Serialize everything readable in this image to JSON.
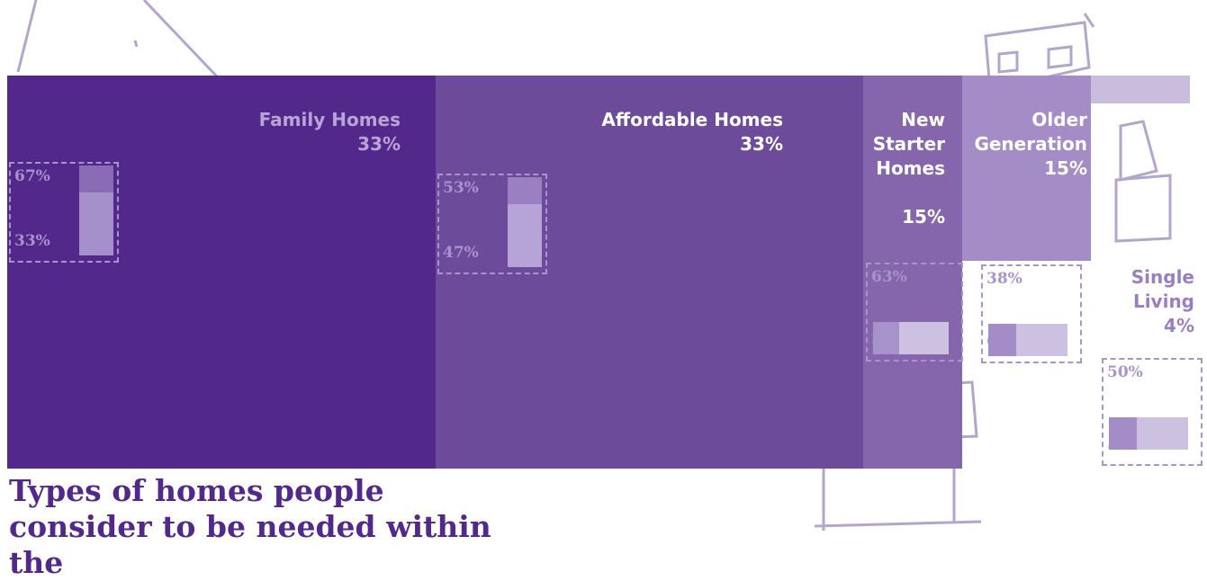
{
  "title": "Types of homes people consider to be needed within the",
  "segments": [
    {
      "label": "Family Homes",
      "share": "33%",
      "split": [
        "67%",
        "33%"
      ]
    },
    {
      "label": "Affordable Homes",
      "share": "33%",
      "split": [
        "53%",
        "47%"
      ]
    },
    {
      "label": "New Starter Homes",
      "share": "15%",
      "split": [
        "63%",
        "38%"
      ]
    },
    {
      "label": "Older Generation",
      "share": "15%",
      "split": [
        "38%",
        "63%"
      ]
    },
    {
      "label": "Single Living",
      "share": "4%",
      "split": [
        "50%",
        "50%"
      ]
    }
  ]
}
